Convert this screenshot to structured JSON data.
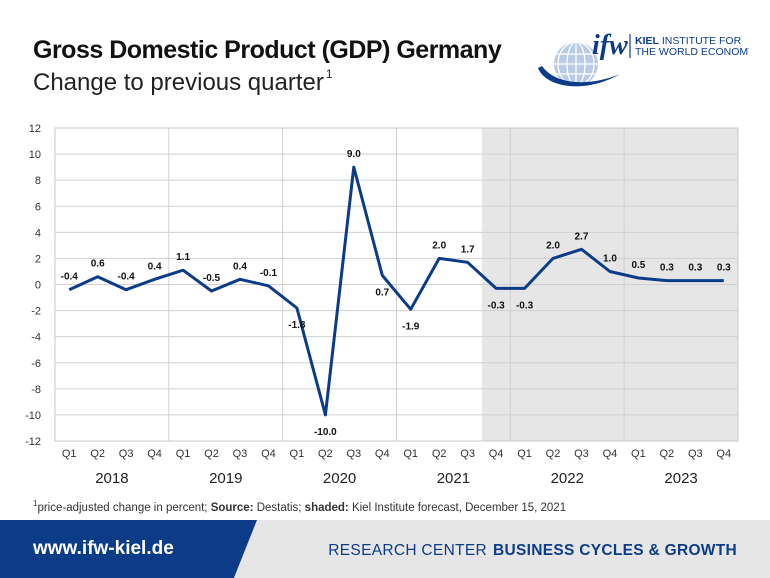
{
  "header": {
    "title": "Gross Domestic Product (GDP) Germany",
    "subtitle": "Change to previous quarter",
    "subtitle_footnote_mark": "1"
  },
  "logo": {
    "wordmark": "ifw",
    "line1_bold": "KIEL",
    "line1_rest": " INSTITUTE FOR",
    "line2": "THE WORLD ECONOMY"
  },
  "chart_data": {
    "type": "line",
    "x": [
      "2018 Q1",
      "2018 Q2",
      "2018 Q3",
      "2018 Q4",
      "2019 Q1",
      "2019 Q2",
      "2019 Q3",
      "2019 Q4",
      "2020 Q1",
      "2020 Q2",
      "2020 Q3",
      "2020 Q4",
      "2021 Q1",
      "2021 Q2",
      "2021 Q3",
      "2021 Q4",
      "2022 Q1",
      "2022 Q2",
      "2022 Q3",
      "2022 Q4",
      "2023 Q1",
      "2023 Q2",
      "2023 Q3",
      "2023 Q4"
    ],
    "quarter_labels": [
      "Q1",
      "Q2",
      "Q3",
      "Q4",
      "Q1",
      "Q2",
      "Q3",
      "Q4",
      "Q1",
      "Q2",
      "Q3",
      "Q4",
      "Q1",
      "Q2",
      "Q3",
      "Q4",
      "Q1",
      "Q2",
      "Q3",
      "Q4",
      "Q1",
      "Q2",
      "Q3",
      "Q4"
    ],
    "years": [
      "2018",
      "2019",
      "2020",
      "2021",
      "2022",
      "2023"
    ],
    "series": [
      {
        "values": [
          -0.4,
          0.6,
          -0.4,
          0.4,
          1.1,
          -0.5,
          0.4,
          -0.1,
          -1.8,
          -10.0,
          9.0,
          0.7,
          -1.9,
          2.0,
          1.7,
          -0.3,
          -0.3,
          2.0,
          2.7,
          1.0,
          0.5,
          0.3,
          0.3,
          0.3
        ]
      }
    ],
    "data_labels": [
      "-0.4",
      "0.6",
      "-0.4",
      "0.4",
      "1.1",
      "-0.5",
      "0.4",
      "-0.1",
      "-1.8",
      "-10.0",
      "9.0",
      "0.7",
      "-1.9",
      "2.0",
      "1.7",
      "-0.3",
      "-0.3",
      "2.0",
      "2.7",
      "1.0",
      "0.5",
      "0.3",
      "0.3",
      "0.3"
    ],
    "label_below": [
      false,
      false,
      false,
      false,
      false,
      false,
      false,
      false,
      true,
      true,
      false,
      true,
      true,
      false,
      false,
      true,
      true,
      false,
      false,
      false,
      false,
      false,
      false,
      false
    ],
    "yticks": [
      12,
      10,
      8,
      6,
      4,
      2,
      0,
      -2,
      -4,
      -6,
      -8,
      -10,
      -12
    ],
    "ylim": [
      -12,
      12
    ],
    "grid": true,
    "forecast_shaded_from": "2021 Q4",
    "line_color": "#0c3c87",
    "shade_color": "#e6e6e6"
  },
  "footnote": {
    "mark": "1",
    "text1": "price-adjusted change in percent; ",
    "source_label": "Source:",
    "source_text": " Destatis; ",
    "shaded_label": "shaded:",
    "shaded_text": " Kiel Institute forecast, December 15, 2021"
  },
  "footer": {
    "url": "www.ifw-kiel.de",
    "rc_light": "RESEARCH CENTER",
    "rc_bold": "BUSINESS CYCLES & GROWTH"
  }
}
